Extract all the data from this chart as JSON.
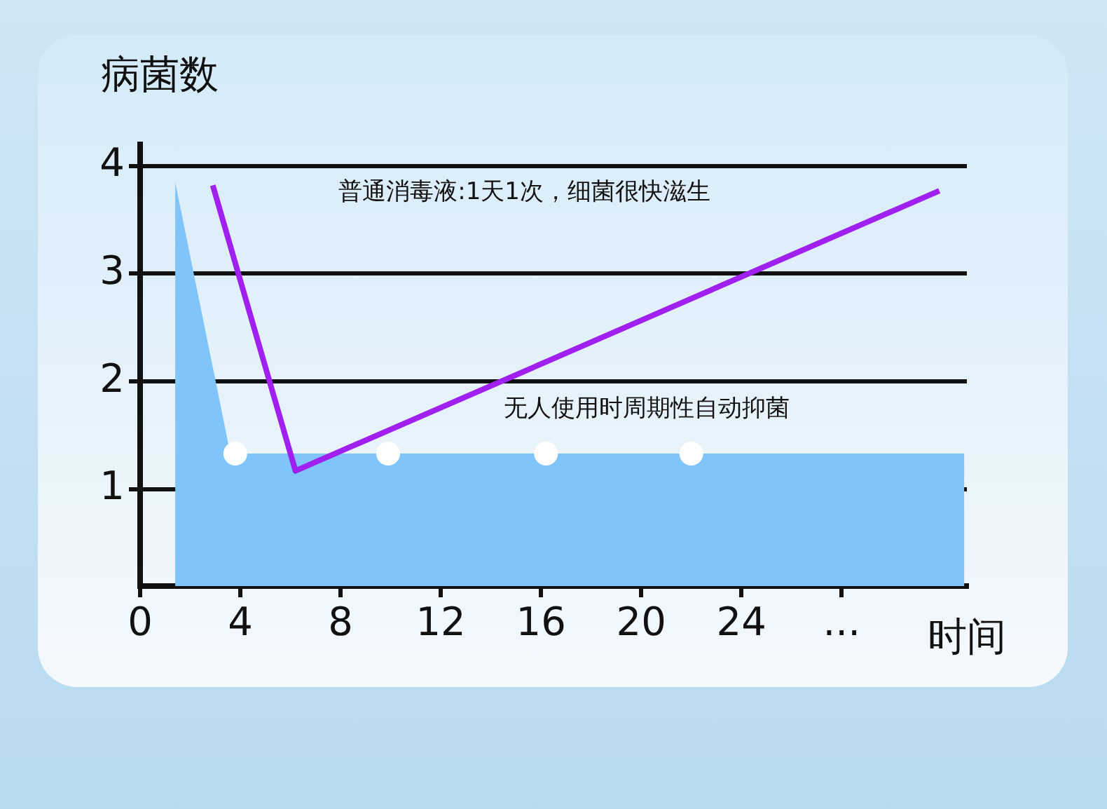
{
  "chart_data": {
    "type": "line",
    "ylabel": "病菌数",
    "xlabel": "时间",
    "xlim": [
      0,
      33
    ],
    "xticks": [
      0,
      4,
      8,
      12,
      16,
      20,
      24,
      {
        "value": 28,
        "label": "..."
      }
    ],
    "ylim": [
      0.1,
      4.2
    ],
    "yticks": [
      1,
      2,
      3,
      4
    ],
    "series": [
      {
        "type": "area",
        "color": "#80c4fc",
        "x": [
          1.4,
          3.6,
          32.9
        ],
        "values": [
          3.85,
          1.33,
          1.33
        ]
      },
      {
        "type": "scatter",
        "color": "#ffffff",
        "x": [
          3.8,
          9.9,
          16.2,
          22.0
        ],
        "values": [
          1.33,
          1.33,
          1.33,
          1.33
        ]
      },
      {
        "color": "#a020f0",
        "x": [
          2.9,
          6.2,
          31.9
        ],
        "values": [
          3.82,
          1.17,
          3.77
        ]
      }
    ],
    "annotations": [
      "普通消毒液:1天1次，细菌很快滋生",
      "无人使用时周期性自动抑菌"
    ],
    "grid": "y",
    "legend": false
  }
}
